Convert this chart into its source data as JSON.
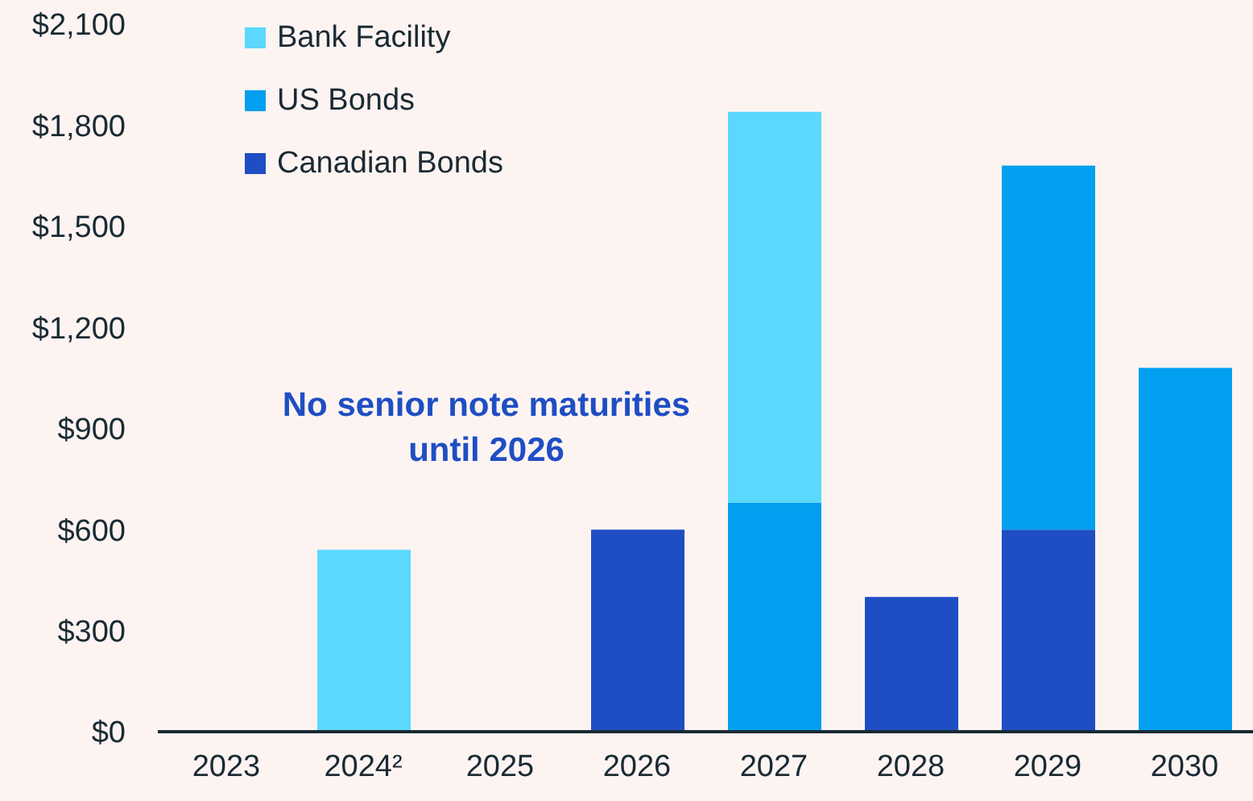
{
  "chart_data": {
    "type": "bar",
    "stacked": true,
    "categories": [
      "2023",
      "2024²",
      "2025",
      "2026",
      "2027",
      "2028",
      "2029",
      "2030"
    ],
    "series": [
      {
        "name": "Canadian Bonds",
        "color": "#1f4ec4",
        "values": [
          0,
          0,
          0,
          600,
          0,
          400,
          600,
          0
        ]
      },
      {
        "name": "US Bonds",
        "color": "#039ff0",
        "values": [
          0,
          0,
          0,
          0,
          680,
          0,
          1080,
          1080
        ]
      },
      {
        "name": "Bank Facility",
        "color": "#5ad8fe",
        "values": [
          0,
          540,
          0,
          0,
          1160,
          0,
          0,
          0
        ]
      }
    ],
    "ylim": [
      0,
      2100
    ],
    "yticks": [
      {
        "value": 0,
        "label": "$0"
      },
      {
        "value": 300,
        "label": "$300"
      },
      {
        "value": 600,
        "label": "$600"
      },
      {
        "value": 900,
        "label": "$900"
      },
      {
        "value": 1200,
        "label": "$1,200"
      },
      {
        "value": 1500,
        "label": "$1,500"
      },
      {
        "value": 1800,
        "label": "$1,800"
      },
      {
        "value": 2100,
        "label": "$2,100"
      }
    ],
    "annotations": [
      "No senior note maturities until 2026"
    ],
    "grid": false,
    "legend": "top left"
  }
}
